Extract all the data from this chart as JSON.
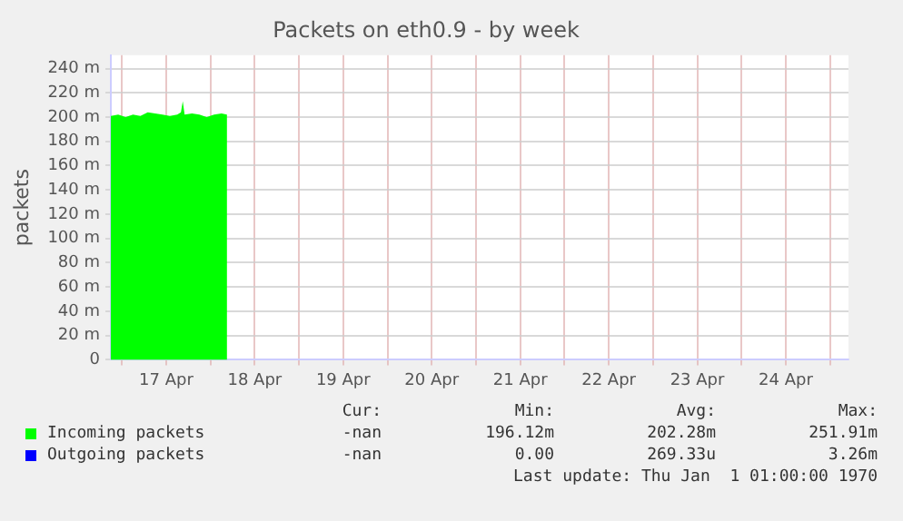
{
  "chart_data": {
    "type": "area",
    "title": "Packets on eth0.9 - by week",
    "ylabel": "packets",
    "x": [
      "--04-16T21:00",
      "--04-16T23:00",
      "--04-17T01:00",
      "--04-17T03:00",
      "--04-17T05:00",
      "--04-17T07:00",
      "--04-17T09:00",
      "--04-17T11:00",
      "--04-17T13:00",
      "--04-17T15:00",
      "--04-17T16:00",
      "--04-17T16:30",
      "--04-17T17:00",
      "--04-17T19:00",
      "--04-17T21:00",
      "--04-17T23:00",
      "--04-18T01:00",
      "--04-18T03:00",
      "--04-18T04:30"
    ],
    "series": [
      {
        "name": "Incoming packets",
        "color": "#00ff00",
        "values": [
          201,
          202,
          200,
          202,
          201,
          204,
          203,
          202,
          201,
          202,
          204,
          213,
          202,
          203,
          202,
          200,
          202,
          203,
          202
        ]
      },
      {
        "name": "Outgoing packets",
        "color": "#0000ff",
        "values": [
          null,
          null,
          null,
          null,
          null,
          null,
          null,
          null,
          null,
          null,
          null,
          null,
          null,
          null,
          null,
          null,
          null,
          null,
          null
        ]
      }
    ],
    "xlim": [
      "--04-16T21:00",
      "--04-25T05:00"
    ],
    "xticks": [
      {
        "value": "--04-17T00:00",
        "label": null
      },
      {
        "value": "--04-17T12:00",
        "label": "17 Apr"
      },
      {
        "value": "--04-18T00:00",
        "label": null
      },
      {
        "value": "--04-18T12:00",
        "label": "18 Apr"
      },
      {
        "value": "--04-19T00:00",
        "label": null
      },
      {
        "value": "--04-19T12:00",
        "label": "19 Apr"
      },
      {
        "value": "--04-20T00:00",
        "label": null
      },
      {
        "value": "--04-20T12:00",
        "label": "20 Apr"
      },
      {
        "value": "--04-21T00:00",
        "label": null
      },
      {
        "value": "--04-21T12:00",
        "label": "21 Apr"
      },
      {
        "value": "--04-22T00:00",
        "label": null
      },
      {
        "value": "--04-22T12:00",
        "label": "22 Apr"
      },
      {
        "value": "--04-23T00:00",
        "label": null
      },
      {
        "value": "--04-23T12:00",
        "label": "23 Apr"
      },
      {
        "value": "--04-24T00:00",
        "label": null
      },
      {
        "value": "--04-24T12:00",
        "label": "24 Apr"
      },
      {
        "value": "--04-25T00:00",
        "label": null
      }
    ],
    "ylim": [
      0,
      251
    ],
    "yticks": [
      0,
      {
        "value": 20,
        "label": "20 m"
      },
      {
        "value": 40,
        "label": "40 m"
      },
      {
        "value": 60,
        "label": "60 m"
      },
      {
        "value": 80,
        "label": "80 m"
      },
      {
        "value": 100,
        "label": "100 m"
      },
      {
        "value": 120,
        "label": "120 m"
      },
      {
        "value": 140,
        "label": "140 m"
      },
      {
        "value": 160,
        "label": "160 m"
      },
      {
        "value": 180,
        "label": "180 m"
      },
      {
        "value": 200,
        "label": "200 m"
      },
      {
        "value": 220,
        "label": "220 m"
      },
      {
        "value": 240,
        "label": "240 m"
      }
    ],
    "grid": true,
    "legend": "bottom",
    "annotations": [
      "Cur:",
      "Min:",
      "Avg:",
      "Max:",
      "-nan",
      "196.12m",
      "202.28m",
      "251.91m",
      "-nan",
      "0.00",
      "269.33u",
      "3.26m",
      "Last update: Thu Jan  1 01:00:00 1970"
    ]
  }
}
